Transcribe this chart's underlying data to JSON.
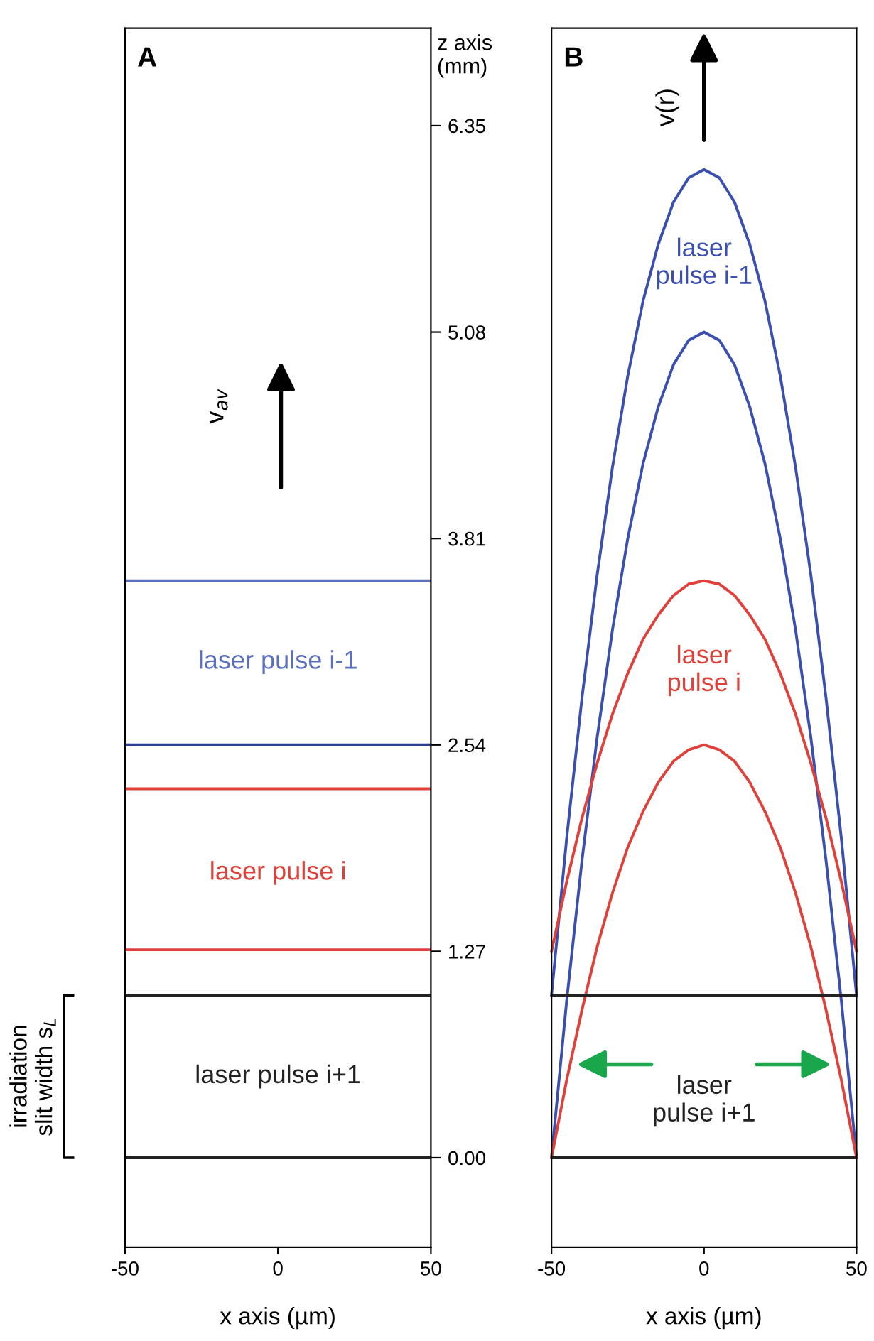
{
  "chart_data": [
    {
      "type": "line",
      "xlabel": "x axis (µm)",
      "ylabel": "z axis\n(mm)",
      "xlim": [
        -50,
        50
      ],
      "ylim": [
        -0.55,
        6.95
      ],
      "xticks": [
        -50,
        0,
        50
      ],
      "yticks": [
        {
          "value": 0,
          "label": "0.00"
        },
        1.27,
        2.54,
        3.81,
        5.08,
        6.35
      ],
      "grid": false,
      "legend": false,
      "ref_lines": [
        {
          "axis": "y",
          "value": 3.55,
          "color": "#5b6fc0"
        },
        {
          "axis": "y",
          "value": 2.54,
          "color": "#2f3f8f"
        },
        {
          "axis": "y",
          "value": 2.27,
          "color": "#e0403a"
        },
        {
          "axis": "y",
          "value": 1.28,
          "color": "#e0403a"
        },
        {
          "axis": "y",
          "value": 1.0,
          "color": "#222222"
        },
        {
          "axis": "y",
          "value": 0,
          "color": "#222222"
        }
      ],
      "annotations": [
        "A",
        "v$_{av}$",
        "laser pulse i-1",
        "laser pulse i",
        "laser pulse i+1",
        "irradiation\nslit width s$_{L}$"
      ]
    },
    {
      "type": "line",
      "xlabel": "x axis (µm)",
      "xlim": [
        -50,
        50
      ],
      "ylim": [
        -0.55,
        6.95
      ],
      "xticks": [
        -50,
        0,
        50
      ],
      "tick_labels": "x",
      "grid": false,
      "legend": false,
      "x": [
        -50,
        -45,
        -40,
        -35,
        -30,
        -25,
        -20,
        -15,
        -10,
        -5,
        0,
        5,
        10,
        15,
        20,
        25,
        30,
        35,
        40,
        45,
        50
      ],
      "series": [
        {
          "color": "#3a4fb0",
          "values": [
            1,
            1.97,
            2.83,
            3.59,
            4.25,
            4.81,
            5.27,
            5.62,
            5.88,
            6.03,
            6.08,
            6.03,
            5.88,
            5.62,
            5.27,
            4.81,
            4.25,
            3.59,
            2.83,
            1.97,
            1
          ]
        },
        {
          "color": "#3a4fb0",
          "values": [
            0,
            0.97,
            1.83,
            2.59,
            3.25,
            3.81,
            4.27,
            4.62,
            4.88,
            5.03,
            5.08,
            5.03,
            4.88,
            4.62,
            4.27,
            3.81,
            3.25,
            2.59,
            1.83,
            0.97,
            0
          ]
        },
        {
          "color": "#e0403a",
          "values": [
            1.27,
            1.7,
            2.09,
            2.43,
            2.73,
            2.98,
            3.19,
            3.34,
            3.46,
            3.53,
            3.55,
            3.53,
            3.46,
            3.34,
            3.19,
            2.98,
            2.73,
            2.43,
            2.09,
            1.7,
            1.27
          ]
        },
        {
          "color": "#e0403a",
          "values": [
            0,
            0.48,
            0.91,
            1.3,
            1.63,
            1.91,
            2.13,
            2.31,
            2.44,
            2.51,
            2.54,
            2.51,
            2.44,
            2.31,
            2.13,
            1.91,
            1.63,
            1.3,
            0.91,
            0.48,
            0
          ]
        }
      ],
      "ref_lines": [
        {
          "axis": "y",
          "value": 1.0,
          "color": "#222222"
        },
        {
          "axis": "y",
          "value": 0,
          "color": "#222222"
        }
      ],
      "annotations": [
        "B",
        "v(r)",
        "laser\npulse i-1",
        "laser\npulse i",
        "laser\npulse i+1"
      ]
    }
  ]
}
